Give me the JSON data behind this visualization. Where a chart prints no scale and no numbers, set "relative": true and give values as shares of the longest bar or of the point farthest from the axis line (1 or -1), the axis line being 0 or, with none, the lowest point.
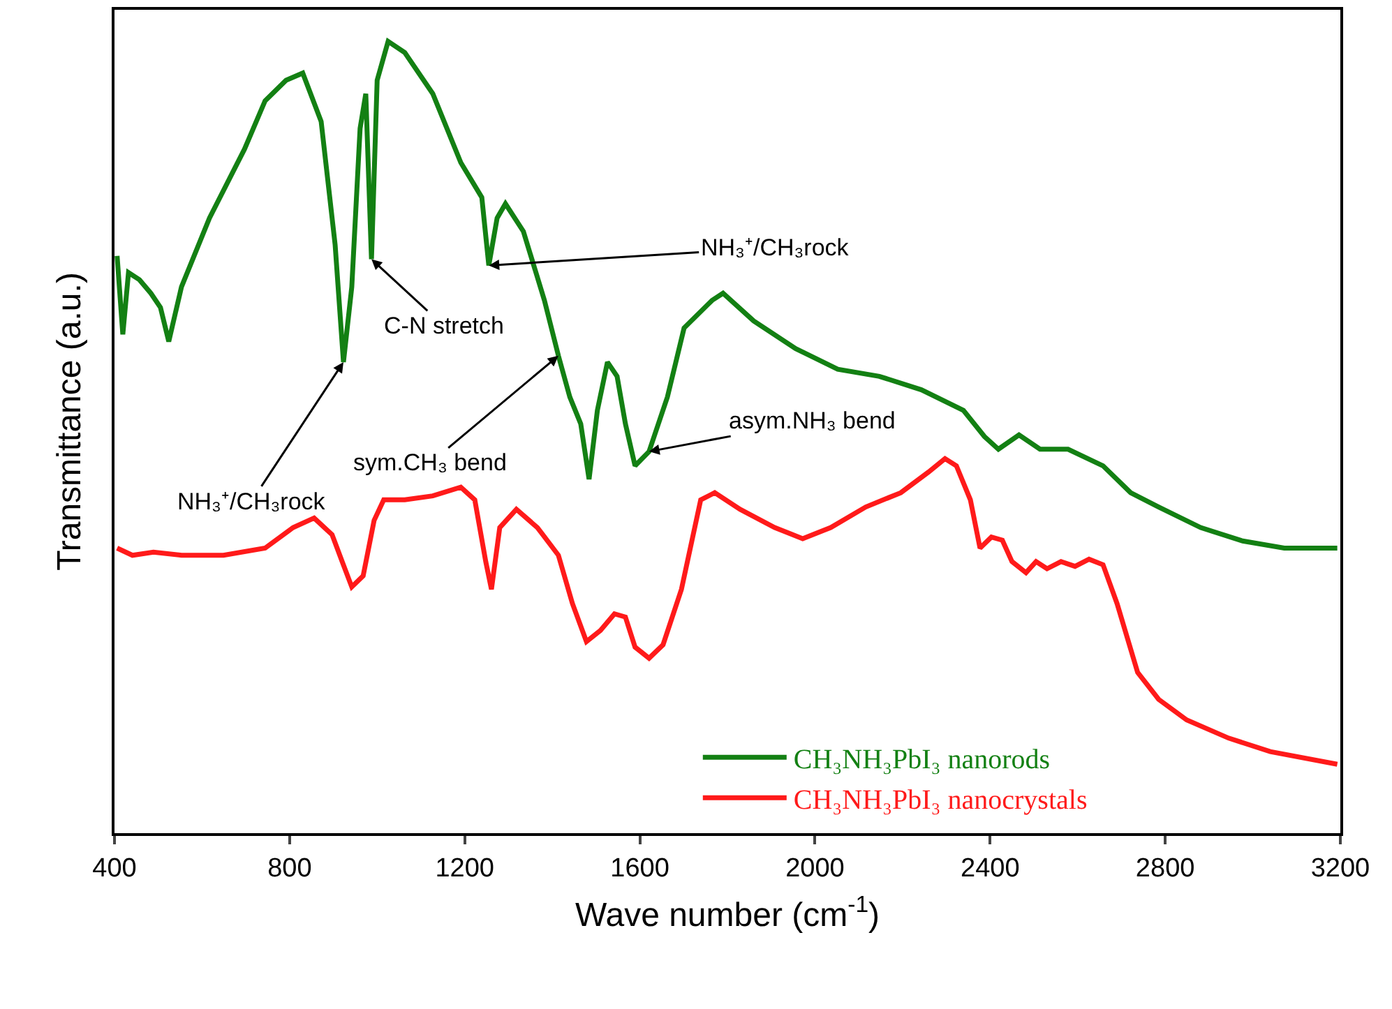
{
  "chart_data": {
    "type": "line",
    "relative": true,
    "xlabel": "Wave number (cm$^{-1}$)",
    "ylabel": "Transmittance (a.u.)",
    "xlim": [
      400,
      3200
    ],
    "xticks": [
      400,
      800,
      1200,
      1600,
      2000,
      2400,
      2800,
      3200
    ],
    "legend": "bottom right",
    "tick_labels": "x",
    "series": [
      {
        "name": "CH₃NH₃PbI₃ nanorods",
        "color": "#138013",
        "x": [
          406,
          419,
          432,
          457,
          483,
          505,
          524,
          553,
          617,
          697,
          744,
          792,
          830,
          872,
          904,
          923,
          942,
          961,
          974,
          987,
          1000,
          1025,
          1063,
          1127,
          1191,
          1239,
          1255,
          1274,
          1293,
          1334,
          1382,
          1414,
          1440,
          1465,
          1484,
          1503,
          1526,
          1548,
          1567,
          1589,
          1621,
          1663,
          1701,
          1765,
          1790,
          1860,
          1956,
          2052,
          2147,
          2243,
          2339,
          2387,
          2419,
          2466,
          2514,
          2578,
          2658,
          2721,
          2785,
          2881,
          2977,
          3072,
          3193
        ],
        "values": [
          0.729,
          0.63,
          0.708,
          0.699,
          0.682,
          0.664,
          0.621,
          0.69,
          0.777,
          0.864,
          0.925,
          0.951,
          0.96,
          0.899,
          0.743,
          0.595,
          0.69,
          0.89,
          0.934,
          0.725,
          0.951,
          1.0,
          0.986,
          0.934,
          0.847,
          0.803,
          0.717,
          0.777,
          0.795,
          0.76,
          0.673,
          0.603,
          0.551,
          0.517,
          0.447,
          0.534,
          0.595,
          0.577,
          0.517,
          0.464,
          0.482,
          0.551,
          0.638,
          0.673,
          0.682,
          0.647,
          0.612,
          0.586,
          0.577,
          0.56,
          0.534,
          0.501,
          0.485,
          0.503,
          0.485,
          0.485,
          0.464,
          0.43,
          0.412,
          0.386,
          0.369,
          0.36,
          0.36
        ]
      },
      {
        "name": "CH₃NH₃PbI₃ nanocrystals",
        "color": "#ff1a1a",
        "x": [
          406,
          441,
          489,
          553,
          649,
          744,
          808,
          856,
          897,
          920,
          942,
          968,
          993,
          1015,
          1063,
          1127,
          1191,
          1223,
          1248,
          1261,
          1280,
          1318,
          1366,
          1414,
          1446,
          1478,
          1510,
          1542,
          1567,
          1589,
          1621,
          1653,
          1695,
          1739,
          1771,
          1829,
          1908,
          1972,
          2036,
          2116,
          2196,
          2259,
          2297,
          2323,
          2355,
          2377,
          2403,
          2428,
          2450,
          2482,
          2505,
          2530,
          2562,
          2594,
          2626,
          2658,
          2690,
          2737,
          2785,
          2849,
          2945,
          3040,
          3193
        ],
        "values": [
          0.36,
          0.351,
          0.355,
          0.351,
          0.351,
          0.36,
          0.386,
          0.398,
          0.377,
          0.343,
          0.311,
          0.325,
          0.395,
          0.421,
          0.421,
          0.426,
          0.437,
          0.421,
          0.343,
          0.308,
          0.386,
          0.409,
          0.386,
          0.351,
          0.29,
          0.242,
          0.256,
          0.277,
          0.273,
          0.235,
          0.221,
          0.238,
          0.308,
          0.421,
          0.43,
          0.409,
          0.386,
          0.372,
          0.386,
          0.412,
          0.43,
          0.456,
          0.473,
          0.464,
          0.421,
          0.36,
          0.374,
          0.37,
          0.343,
          0.329,
          0.343,
          0.334,
          0.343,
          0.337,
          0.346,
          0.339,
          0.29,
          0.203,
          0.169,
          0.143,
          0.12,
          0.103,
          0.087
        ]
      }
    ],
    "annotations": [
      {
        "text": "NH₃⁺/CH₃rock",
        "x": 923,
        "y": 0.595
      },
      {
        "text": "C-N stretch",
        "x": 987,
        "y": 0.725
      },
      {
        "text": "NH₃⁺/CH₃rock",
        "x": 1255,
        "y": 0.717
      },
      {
        "text": "sym.CH₃ bend",
        "x": 1414,
        "y": 0.603
      },
      {
        "text": "asym.NH₃ bend",
        "x": 1621,
        "y": 0.482
      }
    ]
  }
}
